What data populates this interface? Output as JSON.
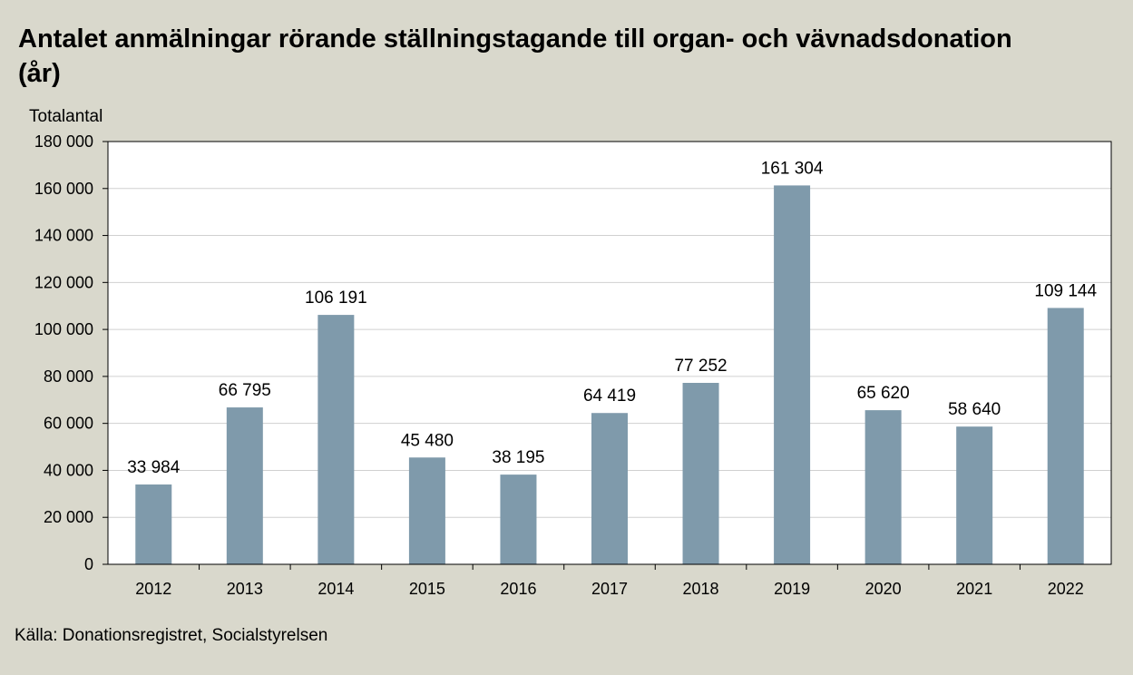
{
  "chart_data": {
    "type": "bar",
    "title": "Antalet anmälningar rörande ställningstagande till organ- och vävnadsdonation (år)",
    "ylabel": "Totalantal",
    "xlabel": "",
    "categories": [
      "2012",
      "2013",
      "2014",
      "2015",
      "2016",
      "2017",
      "2018",
      "2019",
      "2020",
      "2021",
      "2022"
    ],
    "values": [
      33984,
      66795,
      106191,
      45480,
      38195,
      64419,
      77252,
      161304,
      65620,
      58640,
      109144
    ],
    "value_labels": [
      "33 984",
      "66 795",
      "106 191",
      "45 480",
      "38 195",
      "64 419",
      "77 252",
      "161 304",
      "65 620",
      "58 640",
      "109 144"
    ],
    "ylim": [
      0,
      180000
    ],
    "yticks": [
      0,
      20000,
      40000,
      60000,
      80000,
      100000,
      120000,
      140000,
      160000,
      180000
    ],
    "ytick_labels": [
      "0",
      "20 000",
      "40 000",
      "60 000",
      "80 000",
      "100 000",
      "120 000",
      "140 000",
      "160 000",
      "180 000"
    ],
    "grid": true,
    "legend": "none",
    "bar_color": "#7f9aab"
  },
  "source": "Källa: Donationsregistret, Socialstyrelsen"
}
